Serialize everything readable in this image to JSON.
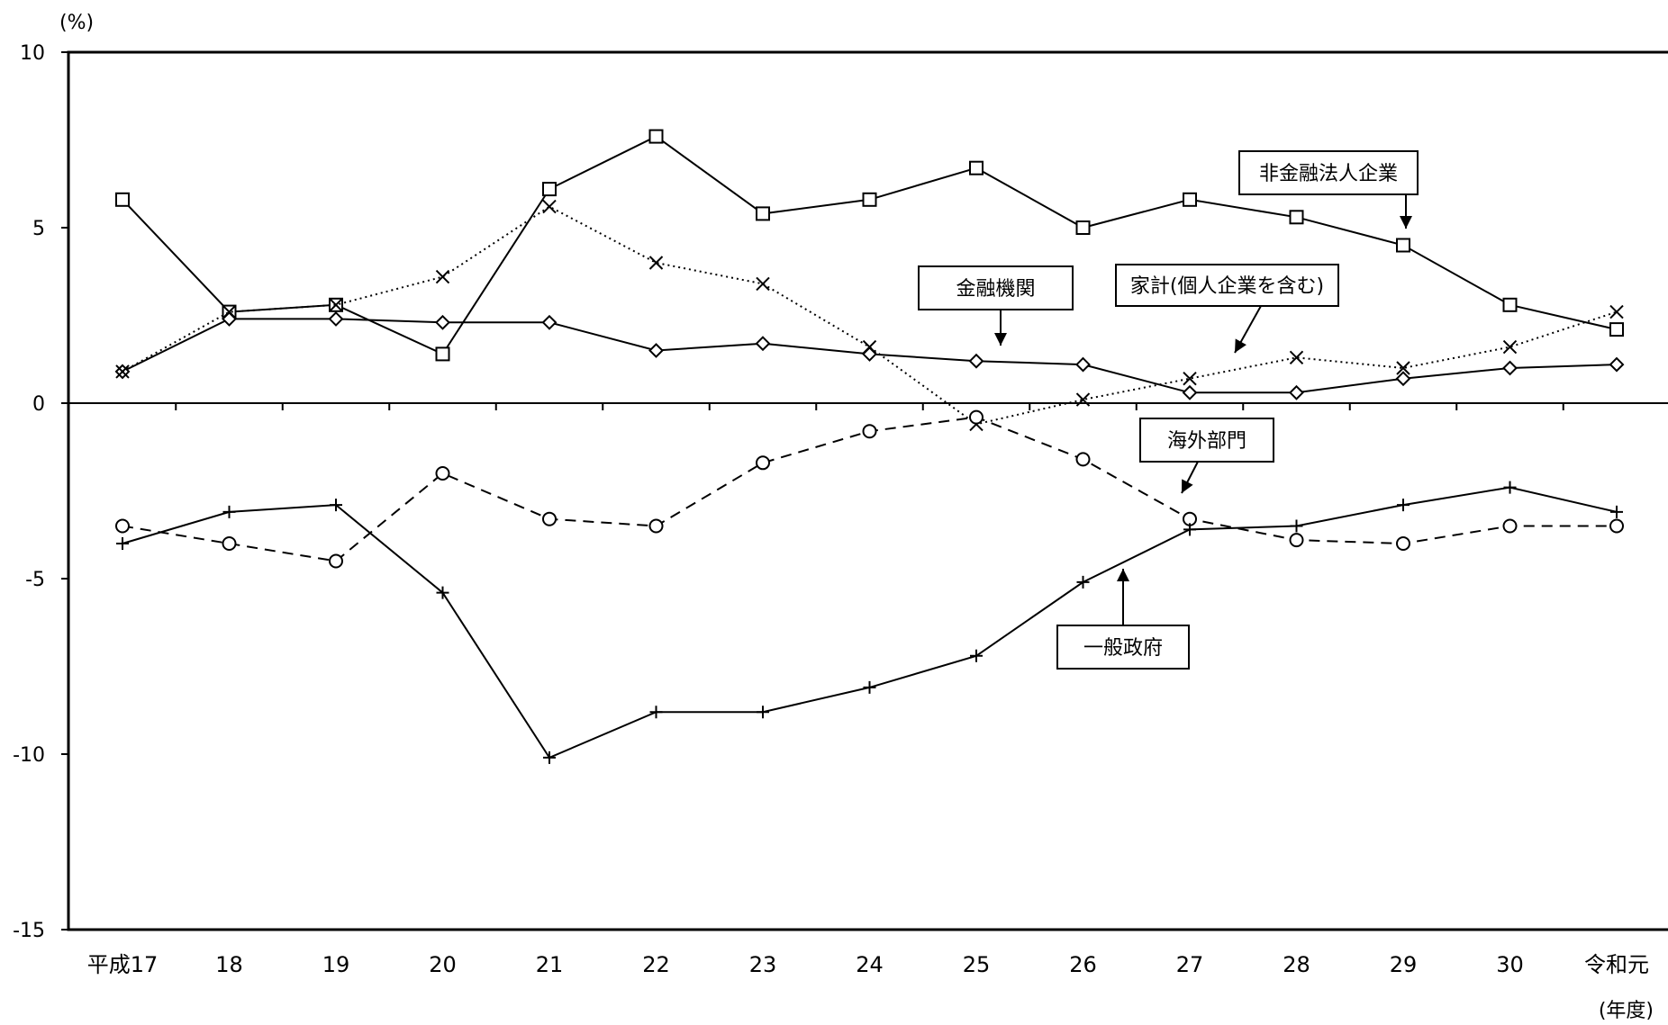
{
  "chart_data": {
    "type": "line",
    "y_unit_label": "(%)",
    "x_unit_label": "(年度)",
    "ylim": [
      -15,
      10
    ],
    "yticks": [
      10,
      5,
      0,
      -5,
      -10,
      -15
    ],
    "grid": false,
    "categories": [
      "平成17",
      "18",
      "19",
      "20",
      "21",
      "22",
      "23",
      "24",
      "25",
      "26",
      "27",
      "28",
      "29",
      "30",
      "令和元"
    ],
    "series": [
      {
        "name": "非金融法人企業",
        "marker": "square",
        "dash": "solid",
        "values": [
          5.8,
          2.6,
          2.8,
          1.4,
          6.1,
          7.6,
          5.4,
          5.8,
          6.7,
          5.0,
          5.8,
          5.3,
          4.5,
          2.8,
          2.1
        ]
      },
      {
        "name": "金融機関",
        "marker": "diamond",
        "dash": "solid",
        "values": [
          0.9,
          2.4,
          2.4,
          2.3,
          2.3,
          1.5,
          1.7,
          1.4,
          1.2,
          1.1,
          0.3,
          0.3,
          0.7,
          1.0,
          1.1
        ]
      },
      {
        "name": "家計(個人企業を含む)",
        "marker": "x",
        "dash": "dotted",
        "values": [
          0.9,
          2.6,
          2.8,
          3.6,
          5.6,
          4.0,
          3.4,
          1.6,
          -0.6,
          0.1,
          0.7,
          1.3,
          1.0,
          1.6,
          2.6
        ]
      },
      {
        "name": "海外部門",
        "marker": "circle",
        "dash": "dashed",
        "values": [
          -3.5,
          -4.0,
          -4.5,
          -2.0,
          -3.3,
          -3.5,
          -1.7,
          -0.8,
          -0.4,
          -1.6,
          -3.3,
          -3.9,
          -4.0,
          -3.5,
          -3.5
        ]
      },
      {
        "name": "一般政府",
        "marker": "plus",
        "dash": "solid",
        "values": [
          -4.0,
          -3.1,
          -2.9,
          -5.4,
          -10.1,
          -8.8,
          -8.8,
          -8.1,
          -7.2,
          -5.1,
          -3.6,
          -3.5,
          -2.9,
          -2.4,
          -3.1
        ]
      }
    ],
    "annotations": [
      {
        "label": "非金融法人企業",
        "series": "非金融法人企業"
      },
      {
        "label": "金融機関",
        "series": "金融機関"
      },
      {
        "label": "家計(個人企業を含む)",
        "series": "家計(個人企業を含む)"
      },
      {
        "label": "海外部門",
        "series": "海外部門"
      },
      {
        "label": "一般政府",
        "series": "一般政府"
      }
    ]
  }
}
